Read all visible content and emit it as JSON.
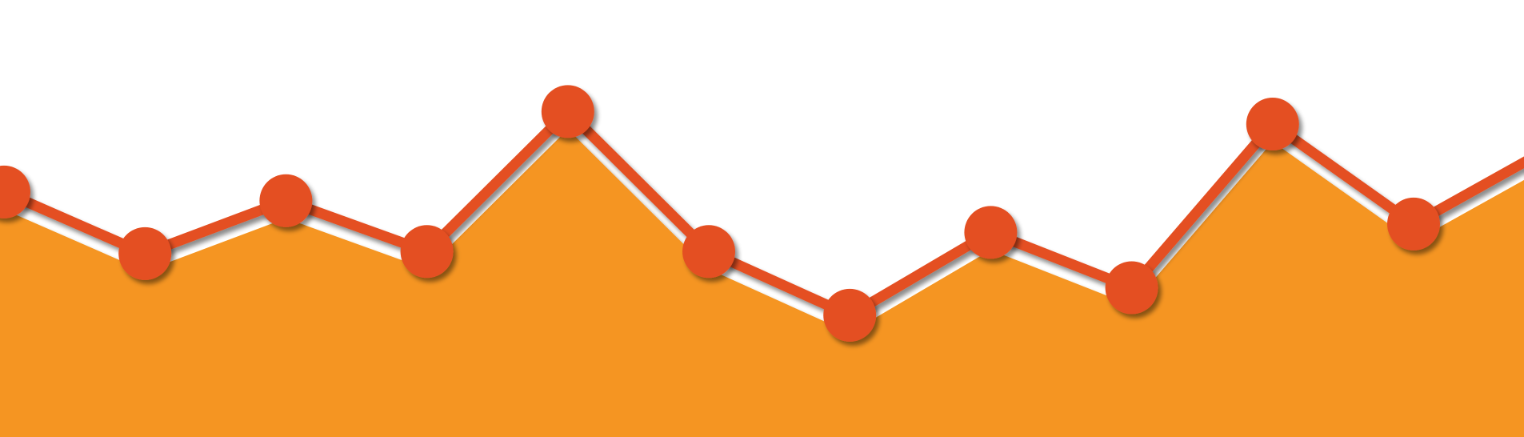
{
  "chart_data": {
    "type": "area",
    "title": "",
    "xlabel": "",
    "ylabel": "",
    "grid": false,
    "legend": "none",
    "x": [
      0,
      1,
      2,
      3,
      4,
      5,
      6,
      7,
      8,
      9,
      10,
      11
    ],
    "ylim": [
      0,
      1
    ],
    "series": [
      {
        "values": [
          0.598,
          0.421,
          0.573,
          0.427,
          0.829,
          0.427,
          0.244,
          0.482,
          0.323,
          0.793,
          0.506,
          0.732
        ]
      }
    ]
  },
  "colors": {
    "background": "#ffffff",
    "area_fill": "#f59520",
    "line": "#e45022",
    "marker": "#e45022",
    "shadow": "#b8401a"
  }
}
